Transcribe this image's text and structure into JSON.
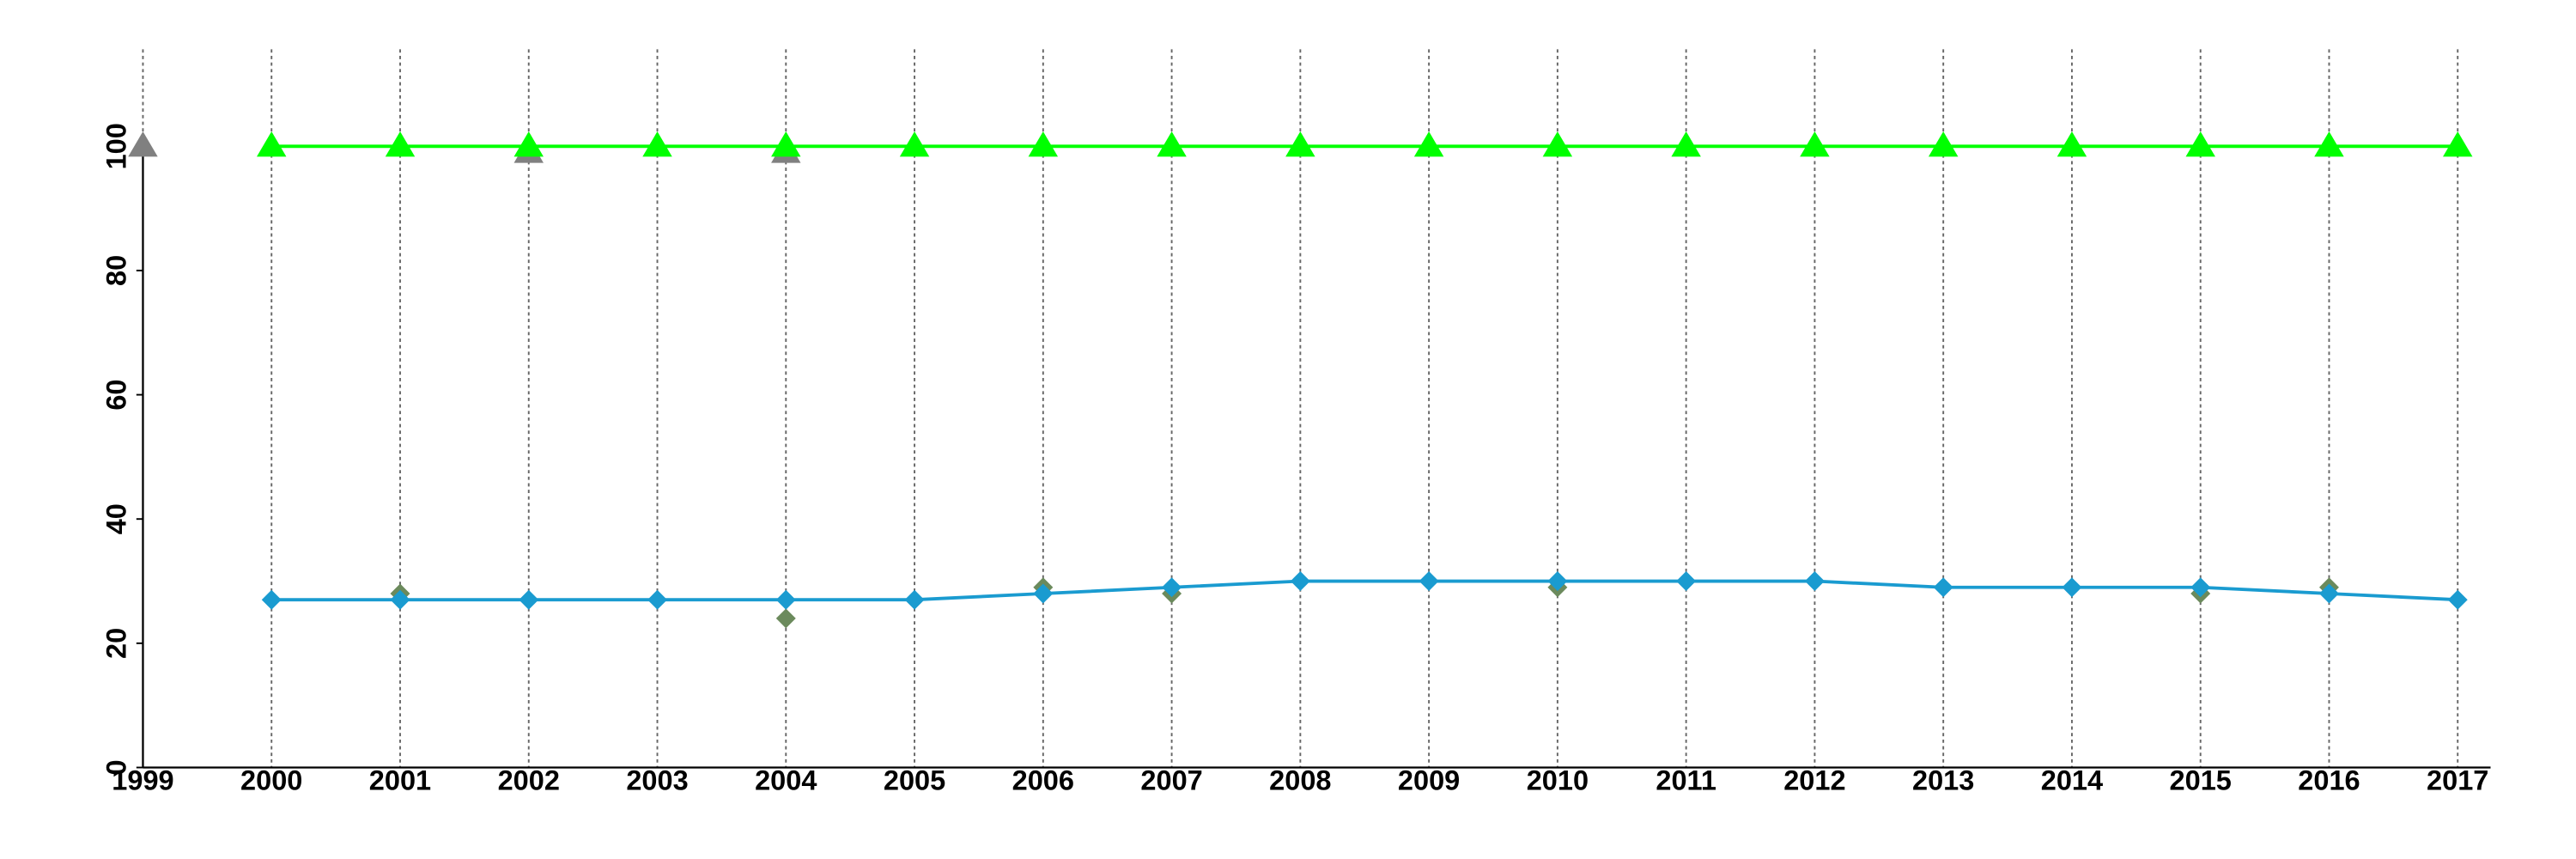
{
  "chart_data": {
    "type": "line",
    "x": [
      1999,
      2000,
      2001,
      2002,
      2003,
      2004,
      2005,
      2006,
      2007,
      2008,
      2009,
      2010,
      2011,
      2012,
      2013,
      2014,
      2015,
      2016,
      2017
    ],
    "xlim": [
      1999,
      2017
    ],
    "xticks": [
      1999,
      2000,
      2001,
      2002,
      2003,
      2004,
      2005,
      2006,
      2007,
      2008,
      2009,
      2010,
      2011,
      2012,
      2013,
      2014,
      2015,
      2016,
      2017
    ],
    "ylim": [
      0,
      100
    ],
    "yticks": [
      0,
      20,
      40,
      60,
      80,
      100
    ],
    "grid": "x",
    "series": [
      {
        "color": "#808080",
        "marker": "triangle",
        "line": false,
        "values": [
          100,
          null,
          null,
          99,
          null,
          99,
          null,
          null,
          null,
          null,
          null,
          null,
          null,
          null,
          null,
          null,
          null,
          null,
          null
        ]
      },
      {
        "color": "#00ff00",
        "marker": "triangle",
        "line": true,
        "values": [
          null,
          100,
          100,
          100,
          100,
          100,
          100,
          100,
          100,
          100,
          100,
          100,
          100,
          100,
          100,
          100,
          100,
          100,
          100
        ]
      },
      {
        "color": "#6b8a5c",
        "marker": "diamond",
        "line": false,
        "values": [
          null,
          null,
          28,
          null,
          null,
          24,
          null,
          29,
          28,
          null,
          null,
          29,
          null,
          null,
          null,
          null,
          28,
          29,
          null
        ]
      },
      {
        "color": "#1a9bd0",
        "marker": "diamond",
        "line": true,
        "values": [
          null,
          27,
          27,
          27,
          27,
          27,
          27,
          28,
          29,
          30,
          30,
          30,
          30,
          30,
          29,
          29,
          29,
          28,
          27
        ]
      }
    ]
  }
}
